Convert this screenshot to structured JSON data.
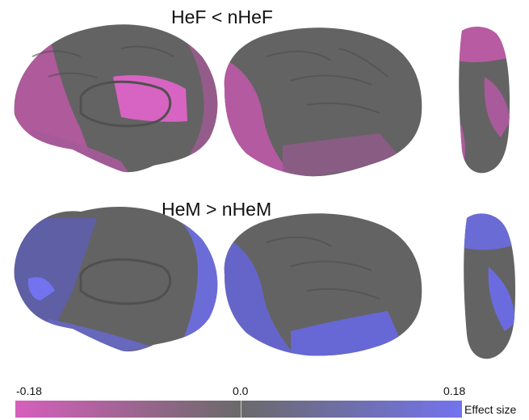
{
  "panels": [
    {
      "title": "HeF < nHeF",
      "highlight_color": "#d65fbc"
    },
    {
      "title": "HeM > nHeM",
      "highlight_color": "#7373e8"
    }
  ],
  "colorbar": {
    "min_label": "-0.18",
    "mid_label": "0.0",
    "max_label": "0.18",
    "unit_label": "Effect size",
    "min_color": "#d65fbc",
    "mid_color": "#6a6a6a",
    "max_color": "#7373ee"
  },
  "colors": {
    "brain_gray": "#636363",
    "brain_dark": "#555555"
  }
}
